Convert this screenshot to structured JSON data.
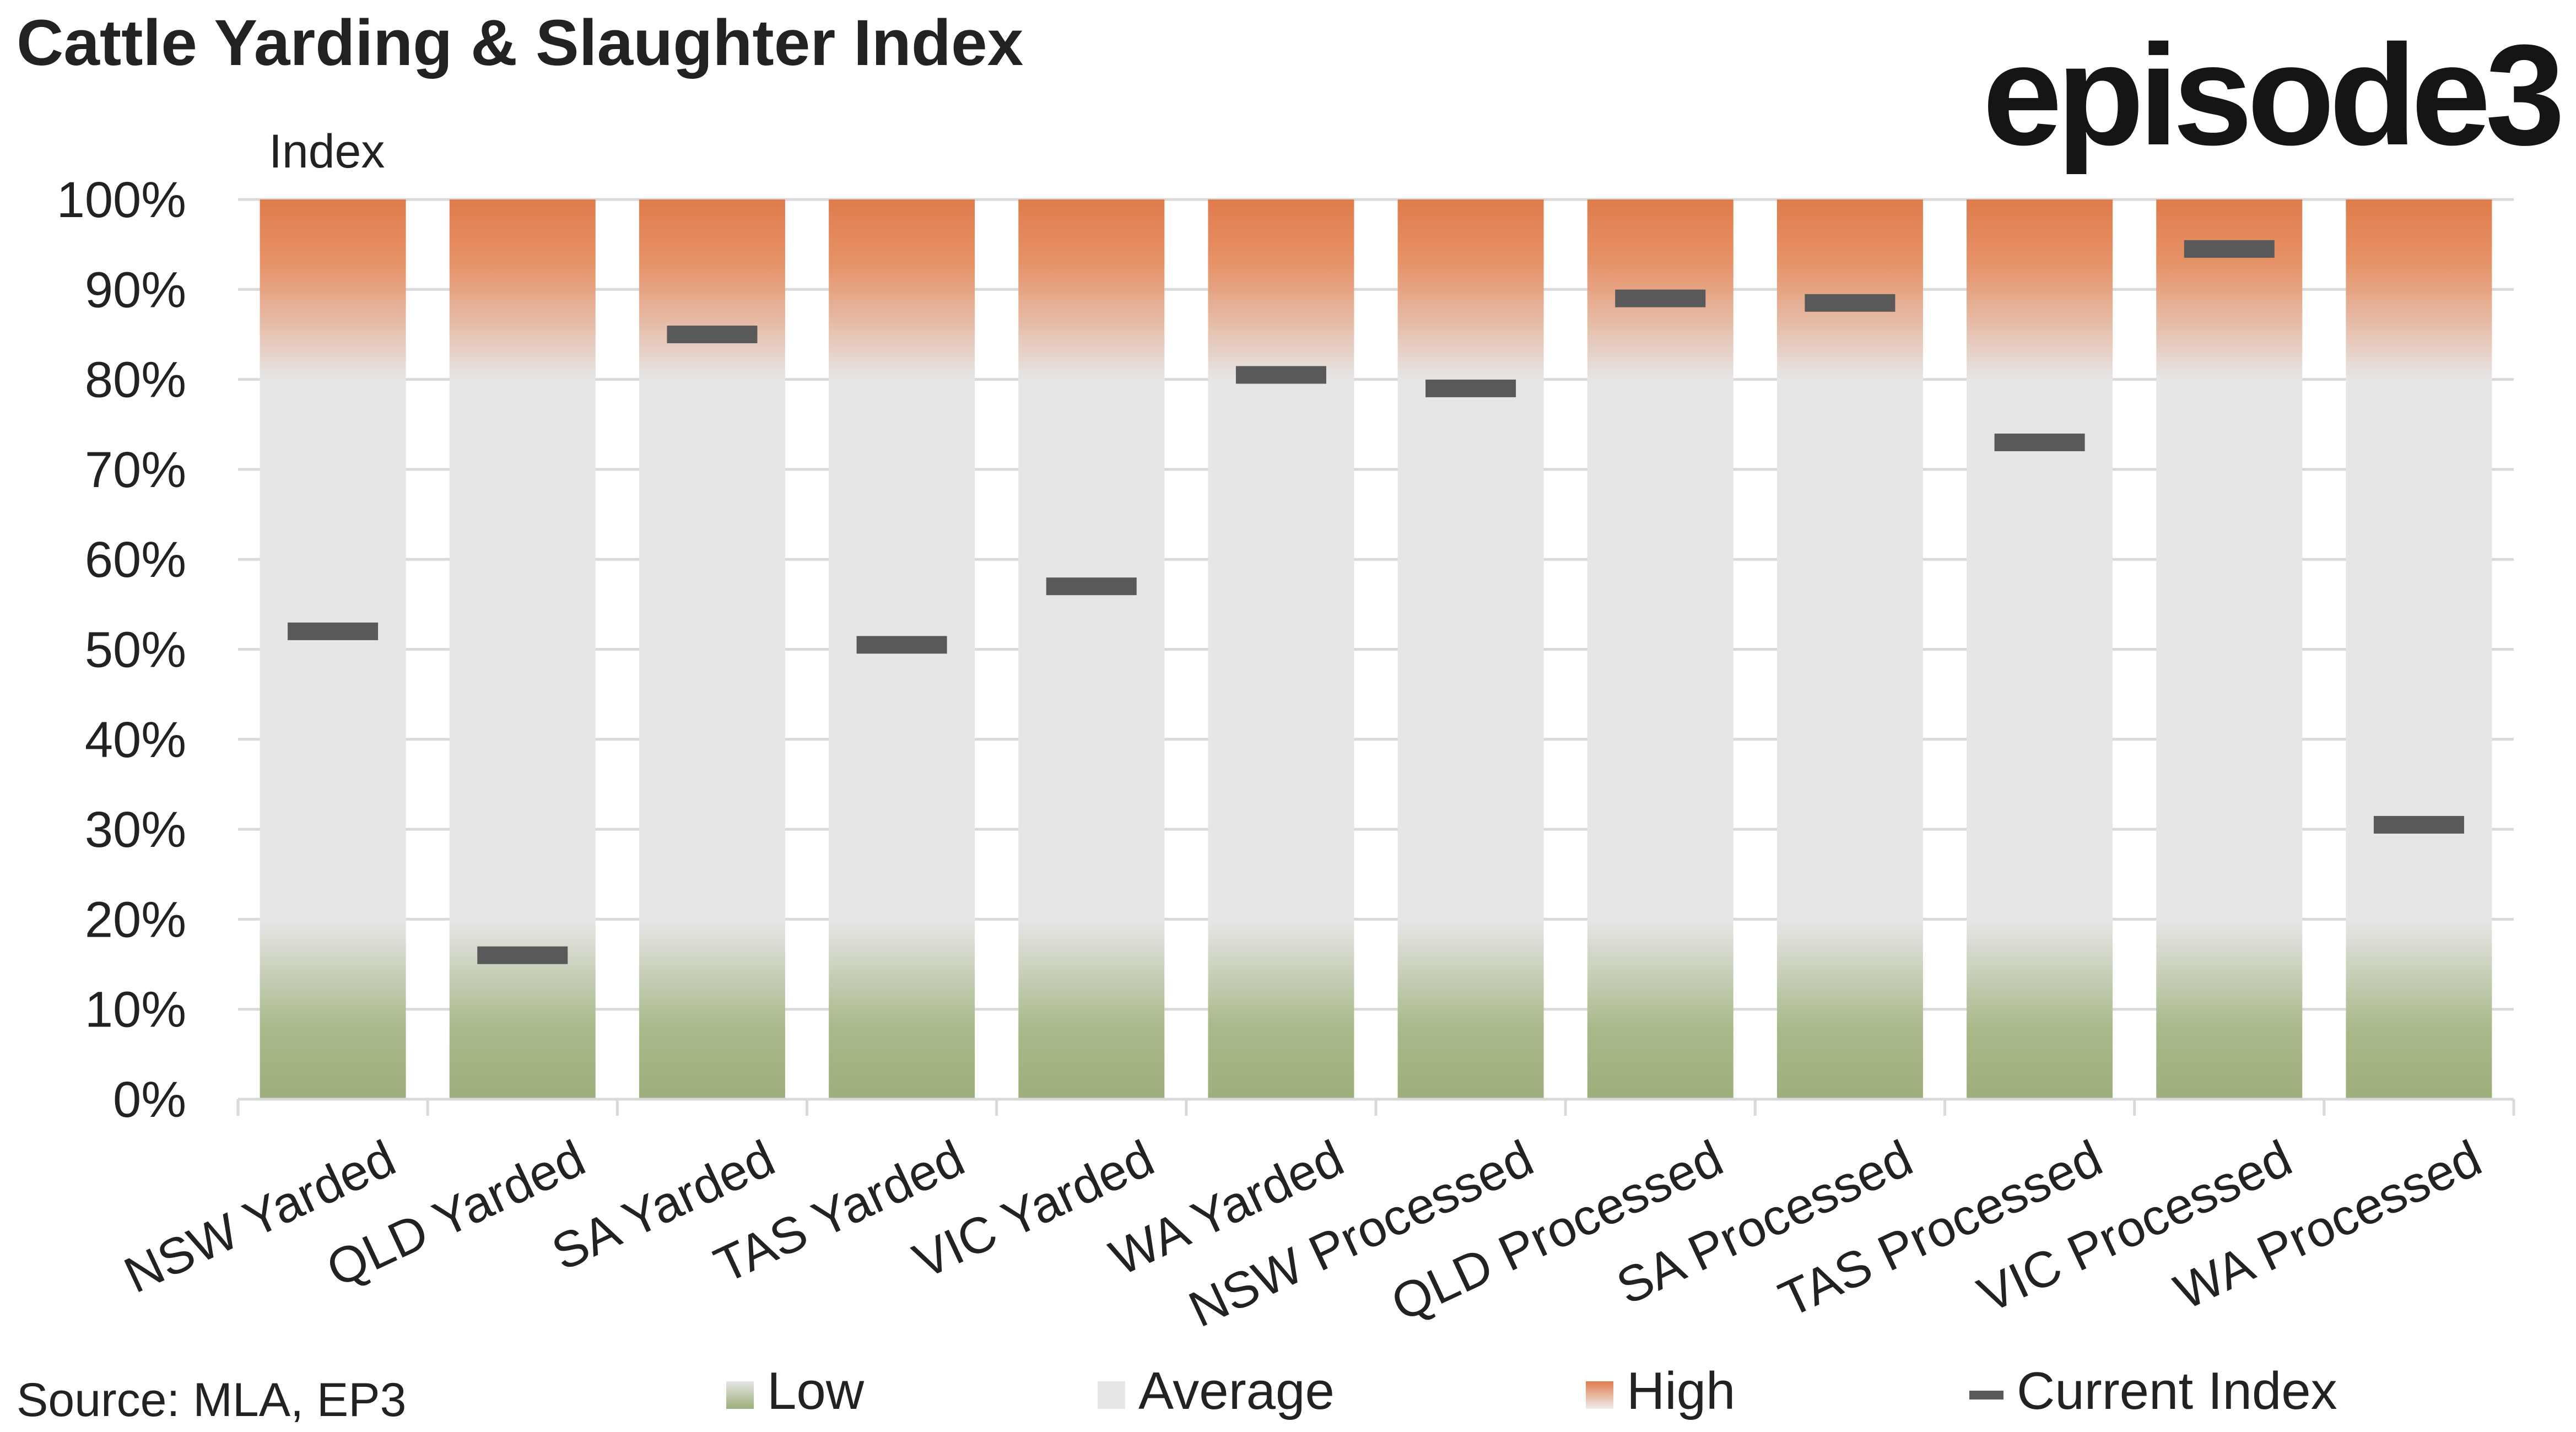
{
  "title": "Cattle Yarding & Slaughter Index",
  "logo_text": "episode3",
  "source": "Source: MLA, EP3",
  "colors": {
    "low": "#9daf7b",
    "average": "#e6e6e6",
    "high": "#df7c4c",
    "current": "#595959",
    "grid": "#d9d9d9",
    "text": "#222222"
  },
  "chart_data": {
    "type": "bar",
    "stacked": true,
    "ylabel": "Index",
    "ylim": [
      0,
      100
    ],
    "yticks": [
      "0%",
      "10%",
      "20%",
      "30%",
      "40%",
      "50%",
      "60%",
      "70%",
      "80%",
      "90%",
      "100%"
    ],
    "grid": true,
    "legend_position": "bottom",
    "categories": [
      "NSW Yarded",
      "QLD Yarded",
      "SA Yarded",
      "TAS Yarded",
      "VIC Yarded",
      "WA Yarded",
      "NSW Processed",
      "QLD Processed",
      "SA Processed",
      "TAS Processed",
      "VIC Processed",
      "WA Processed"
    ],
    "series": [
      {
        "name": "Low",
        "kind": "band",
        "values": [
          20,
          20,
          20,
          20,
          20,
          20,
          20,
          20,
          20,
          20,
          20,
          20
        ]
      },
      {
        "name": "Average",
        "kind": "band",
        "values": [
          60,
          60,
          60,
          60,
          60,
          60,
          60,
          60,
          60,
          60,
          60,
          60
        ]
      },
      {
        "name": "High",
        "kind": "band",
        "values": [
          20,
          20,
          20,
          20,
          20,
          20,
          20,
          20,
          20,
          20,
          20,
          20
        ]
      },
      {
        "name": "Current Index",
        "kind": "marker",
        "values": [
          52,
          16,
          85,
          50.5,
          57,
          80.5,
          79,
          89,
          88.5,
          73,
          94.5,
          30.5
        ]
      }
    ]
  }
}
